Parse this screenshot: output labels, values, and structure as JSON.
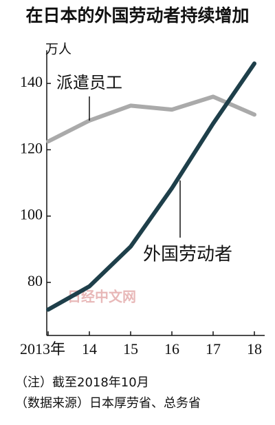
{
  "chart_data": {
    "type": "line",
    "title": "在日本的外国劳动者持续增加",
    "y_unit": "万人",
    "categories": [
      "2013年",
      "14",
      "15",
      "16",
      "17",
      "18"
    ],
    "series": [
      {
        "name": "派遣员工",
        "color": "#aaaaaa",
        "values": [
          122.5,
          128.8,
          133.3,
          132.1,
          136.0,
          130.6
        ]
      },
      {
        "name": "外国劳动者",
        "color": "#1e3f4a",
        "values": [
          71.8,
          78.8,
          90.8,
          108.4,
          127.9,
          146.0
        ]
      }
    ],
    "ylim": [
      64,
      150
    ],
    "yticks": [
      80,
      100,
      120,
      140
    ],
    "watermark": "日经中文网",
    "notes": [
      "（注）截至2018年10月",
      "（数据来源）日本厚劳省、总务省"
    ]
  }
}
